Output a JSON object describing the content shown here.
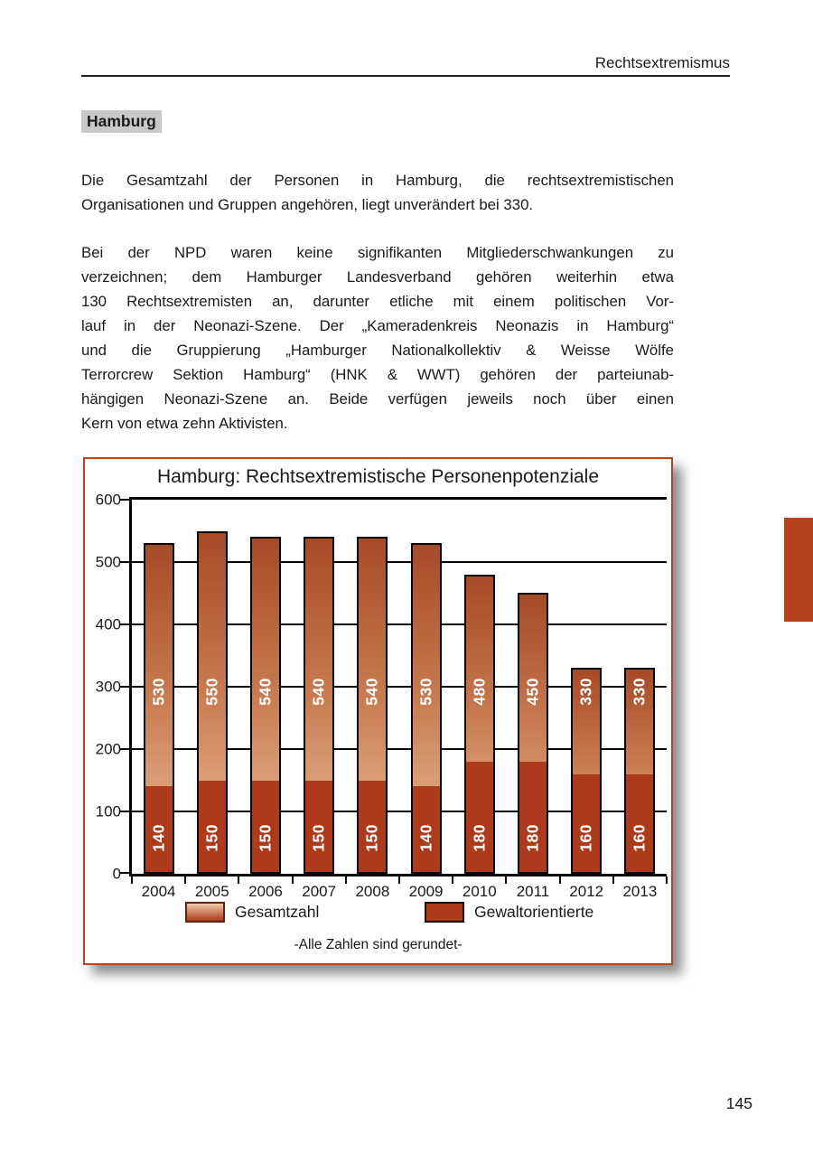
{
  "page": {
    "number": "145"
  },
  "header": {
    "running_title": "Rechtsextremismus"
  },
  "heading": "Hamburg",
  "paragraphs": [
    {
      "lines": [
        "Die Gesamtzahl der Personen in Hamburg, die rechtsextremistischen",
        "Organisationen und Gruppen angehören, liegt unverändert bei 330."
      ]
    },
    {
      "lines": [
        "Bei der NPD waren keine signifikanten Mitgliederschwankungen zu",
        "verzeichnen; dem Hamburger Landesverband gehören weiterhin etwa",
        "130 Rechtsextremisten an, darunter etliche mit einem politischen Vor-",
        "lauf in der Neonazi-Szene. Der „Kameradenkreis Neonazis in Hamburg“",
        "und die Gruppierung „Hamburger Nationalkollektiv & Weisse Wölfe",
        "Terrorcrew Sektion Hamburg“ (HNK & WWT) gehören der parteiunab-",
        "hängigen Neonazi-Szene an. Beide verfügen jeweils noch über einen",
        "Kern von etwa zehn Aktivisten."
      ]
    }
  ],
  "chart_data": {
    "type": "bar",
    "title": "Hamburg: Rechtsextremistische Personenpotenziale",
    "categories": [
      "2004",
      "2005",
      "2006",
      "2007",
      "2008",
      "2009",
      "2010",
      "2011",
      "2012",
      "2013"
    ],
    "series": [
      {
        "name": "Gesamtzahl",
        "values": [
          530,
          550,
          540,
          540,
          540,
          530,
          480,
          450,
          330,
          330
        ]
      },
      {
        "name": "Gewaltorientierte",
        "values": [
          140,
          150,
          150,
          150,
          150,
          140,
          180,
          180,
          160,
          160
        ]
      }
    ],
    "ylim": [
      0,
      600
    ],
    "yticks": [
      0,
      100,
      200,
      300,
      400,
      500,
      600
    ],
    "grid": "horizontal",
    "legend_position": "bottom",
    "note": "-Alle Zahlen sind gerundet-",
    "bar_value_labels": "white, rotated 90° inside bars"
  },
  "colors": {
    "frame_border": "#b5441f",
    "bar_gradient_top": "#a64a28",
    "bar_gradient_bottom": "#eec3a0",
    "bar_solid": "#ad3a1b",
    "side_tab": "#b5431d",
    "heading_highlight": "#c9c9c9",
    "text": "#1a1a1a"
  }
}
